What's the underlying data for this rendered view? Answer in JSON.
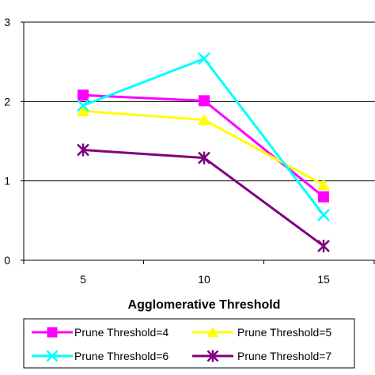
{
  "chart_data": {
    "type": "line",
    "title": "",
    "xlabel": "Agglomerative Threshold",
    "ylabel": "",
    "categories": [
      "5",
      "10",
      "15"
    ],
    "ylim": [
      0,
      3
    ],
    "yticks": [
      "0",
      "1",
      "2",
      "3"
    ],
    "grid": "horizontal",
    "legend_position": "bottom",
    "series": [
      {
        "name": "Prune Threshold=4",
        "values": [
          2.08,
          2.01,
          0.8
        ],
        "color": "#ff00ff",
        "marker": "square"
      },
      {
        "name": "Prune Threshold=5",
        "values": [
          1.88,
          1.77,
          0.95
        ],
        "color": "#ffff00",
        "marker": "triangle"
      },
      {
        "name": "Prune Threshold=6",
        "values": [
          1.95,
          2.54,
          0.57
        ],
        "color": "#00ffff",
        "marker": "x"
      },
      {
        "name": "Prune Threshold=7",
        "values": [
          1.39,
          1.29,
          0.18
        ],
        "color": "#800080",
        "marker": "star"
      }
    ]
  }
}
